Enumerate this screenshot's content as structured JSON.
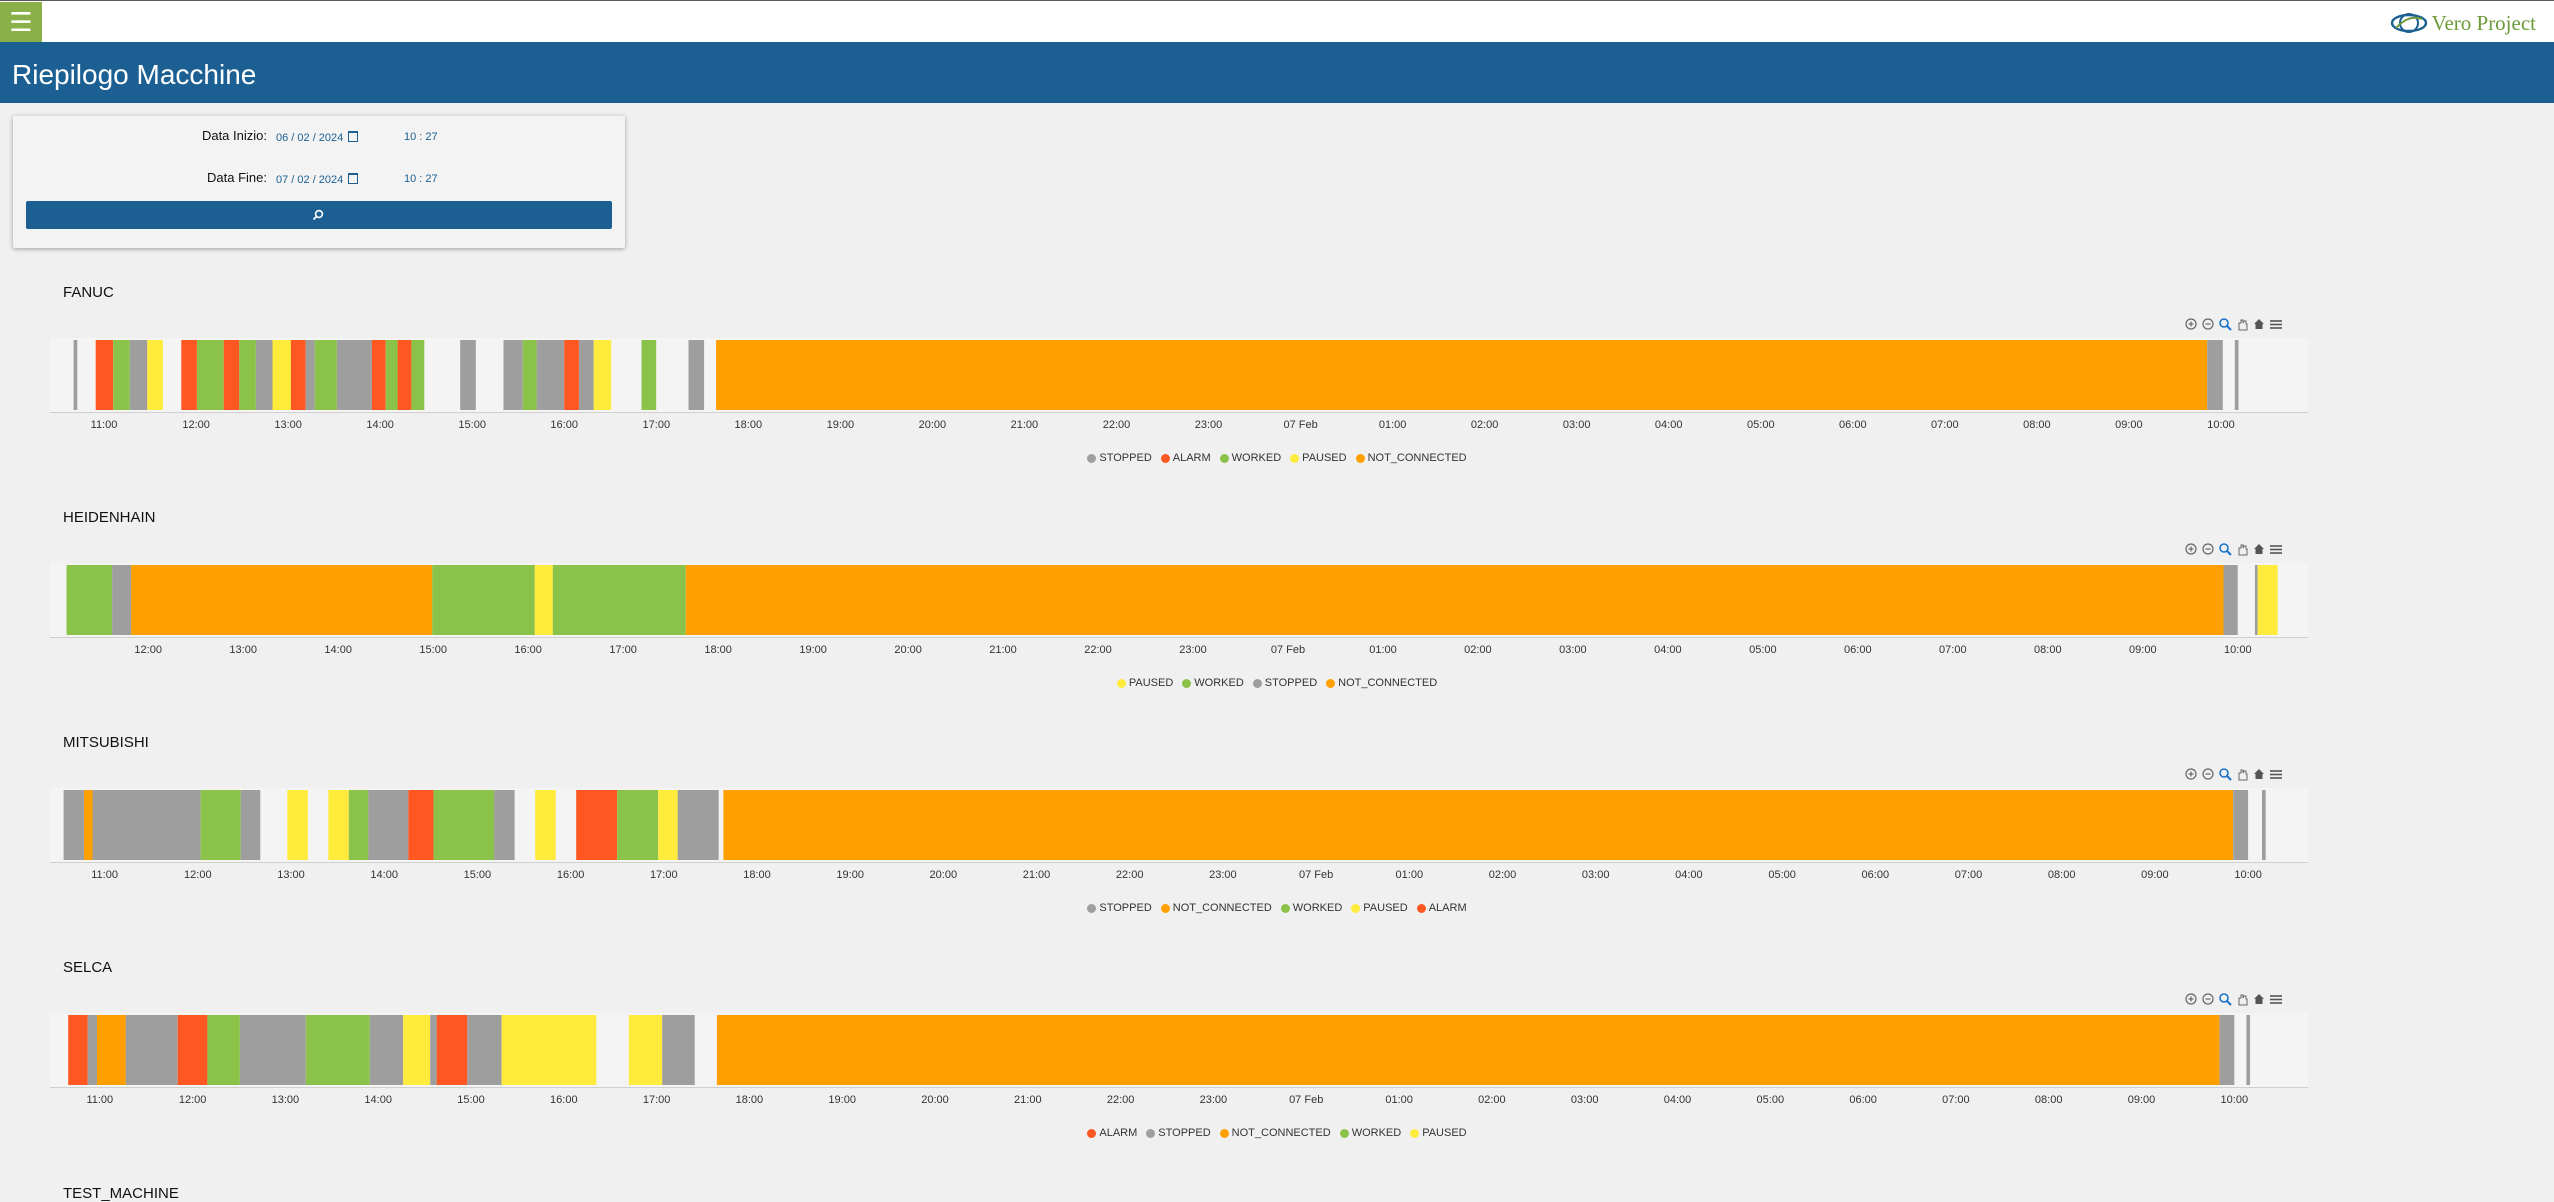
{
  "header": {
    "menu_icon": "hamburger-icon",
    "logo_text": "Vero Project",
    "logo_icon": "vero-swirl-logo-icon"
  },
  "page": {
    "title": "Riepilogo Macchine"
  },
  "filter": {
    "start_label": "Data Inizio:",
    "start_date": "06 / 02 / 2024",
    "start_time": "10 : 27",
    "end_label": "Data Fine:",
    "end_date": "07 / 02 / 2024",
    "end_time": "10 : 27",
    "search_icon": "search-icon"
  },
  "toolbar_icons": [
    "zoom-in-icon",
    "zoom-out-icon",
    "zoom-selection-icon",
    "pan-icon",
    "home-icon",
    "menu-icon"
  ],
  "state_colors": {
    "STOPPED": "#9e9e9e",
    "ALARM": "#ff5722",
    "WORKED": "#8bc34a",
    "PAUSED": "#ffeb3b",
    "NOT_CONNECTED": "#ffa000"
  },
  "machines": [
    {
      "name": "FANUC",
      "legend": [
        "STOPPED",
        "ALARM",
        "WORKED",
        "PAUSED",
        "NOT_CONNECTED"
      ],
      "ticks": [
        "11:00",
        "12:00",
        "13:00",
        "14:00",
        "15:00",
        "16:00",
        "17:00",
        "18:00",
        "19:00",
        "20:00",
        "21:00",
        "22:00",
        "23:00",
        "07 Feb",
        "01:00",
        "02:00",
        "03:00",
        "04:00",
        "05:00",
        "06:00",
        "07:00",
        "08:00",
        "09:00",
        "10:00"
      ],
      "first_tick_hour": 11.0,
      "view_start": 10.5,
      "view_end": 34.75,
      "segments": [
        {
          "s": 10.67,
          "e": 10.71,
          "state": "STOPPED"
        },
        {
          "s": 10.91,
          "e": 11.1,
          "state": "ALARM"
        },
        {
          "s": 11.1,
          "e": 11.28,
          "state": "WORKED"
        },
        {
          "s": 11.28,
          "e": 11.47,
          "state": "STOPPED"
        },
        {
          "s": 11.47,
          "e": 11.64,
          "state": "PAUSED"
        },
        {
          "s": 11.84,
          "e": 12.01,
          "state": "ALARM"
        },
        {
          "s": 12.01,
          "e": 12.3,
          "state": "WORKED"
        },
        {
          "s": 12.3,
          "e": 12.47,
          "state": "ALARM"
        },
        {
          "s": 12.47,
          "e": 12.65,
          "state": "WORKED"
        },
        {
          "s": 12.65,
          "e": 12.83,
          "state": "STOPPED"
        },
        {
          "s": 12.83,
          "e": 13.03,
          "state": "PAUSED"
        },
        {
          "s": 13.03,
          "e": 13.19,
          "state": "ALARM"
        },
        {
          "s": 13.19,
          "e": 13.29,
          "state": "STOPPED"
        },
        {
          "s": 13.29,
          "e": 13.53,
          "state": "WORKED"
        },
        {
          "s": 13.53,
          "e": 13.91,
          "state": "STOPPED"
        },
        {
          "s": 13.91,
          "e": 14.06,
          "state": "ALARM"
        },
        {
          "s": 14.06,
          "e": 14.19,
          "state": "WORKED"
        },
        {
          "s": 14.19,
          "e": 14.34,
          "state": "ALARM"
        },
        {
          "s": 14.34,
          "e": 14.48,
          "state": "WORKED"
        },
        {
          "s": 14.87,
          "e": 15.04,
          "state": "STOPPED"
        },
        {
          "s": 15.34,
          "e": 15.55,
          "state": "STOPPED"
        },
        {
          "s": 15.55,
          "e": 15.7,
          "state": "WORKED"
        },
        {
          "s": 15.7,
          "e": 16.0,
          "state": "STOPPED"
        },
        {
          "s": 16.0,
          "e": 16.16,
          "state": "ALARM"
        },
        {
          "s": 16.16,
          "e": 16.32,
          "state": "STOPPED"
        },
        {
          "s": 16.32,
          "e": 16.51,
          "state": "PAUSED"
        },
        {
          "s": 16.84,
          "e": 17.0,
          "state": "WORKED"
        },
        {
          "s": 17.35,
          "e": 17.52,
          "state": "STOPPED"
        },
        {
          "s": 17.65,
          "e": 33.85,
          "state": "NOT_CONNECTED"
        },
        {
          "s": 33.85,
          "e": 34.02,
          "state": "STOPPED"
        },
        {
          "s": 34.15,
          "e": 34.19,
          "state": "STOPPED"
        }
      ]
    },
    {
      "name": "HEIDENHAIN",
      "legend": [
        "PAUSED",
        "WORKED",
        "STOPPED",
        "NOT_CONNECTED"
      ],
      "ticks": [
        "12:00",
        "13:00",
        "14:00",
        "15:00",
        "16:00",
        "17:00",
        "18:00",
        "19:00",
        "20:00",
        "21:00",
        "22:00",
        "23:00",
        "07 Feb",
        "01:00",
        "02:00",
        "03:00",
        "04:00",
        "05:00",
        "06:00",
        "07:00",
        "08:00",
        "09:00",
        "10:00"
      ],
      "first_tick_hour": 12.0,
      "view_start": 11.05,
      "view_end": 34.55,
      "segments": [
        {
          "s": 11.14,
          "e": 11.62,
          "state": "WORKED"
        },
        {
          "s": 11.62,
          "e": 11.82,
          "state": "STOPPED"
        },
        {
          "s": 11.82,
          "e": 14.99,
          "state": "NOT_CONNECTED"
        },
        {
          "s": 14.99,
          "e": 16.07,
          "state": "WORKED"
        },
        {
          "s": 16.07,
          "e": 16.26,
          "state": "PAUSED"
        },
        {
          "s": 16.26,
          "e": 17.66,
          "state": "WORKED"
        },
        {
          "s": 17.66,
          "e": 33.85,
          "state": "NOT_CONNECTED"
        },
        {
          "s": 33.85,
          "e": 34.0,
          "state": "STOPPED"
        },
        {
          "s": 34.18,
          "e": 34.21,
          "state": "STOPPED"
        },
        {
          "s": 34.21,
          "e": 34.42,
          "state": "PAUSED"
        }
      ]
    },
    {
      "name": "MITSUBISHI",
      "legend": [
        "STOPPED",
        "NOT_CONNECTED",
        "WORKED",
        "PAUSED",
        "ALARM"
      ],
      "ticks": [
        "11:00",
        "12:00",
        "13:00",
        "14:00",
        "15:00",
        "16:00",
        "17:00",
        "18:00",
        "19:00",
        "20:00",
        "21:00",
        "22:00",
        "23:00",
        "07 Feb",
        "01:00",
        "02:00",
        "03:00",
        "04:00",
        "05:00",
        "06:00",
        "07:00",
        "08:00",
        "09:00",
        "10:00"
      ],
      "first_tick_hour": 11.0,
      "view_start": 10.5,
      "view_end": 34.45,
      "segments": [
        {
          "s": 10.56,
          "e": 10.78,
          "state": "STOPPED"
        },
        {
          "s": 10.78,
          "e": 10.87,
          "state": "NOT_CONNECTED"
        },
        {
          "s": 10.87,
          "e": 12.03,
          "state": "STOPPED"
        },
        {
          "s": 12.03,
          "e": 12.46,
          "state": "WORKED"
        },
        {
          "s": 12.46,
          "e": 12.67,
          "state": "STOPPED"
        },
        {
          "s": 12.96,
          "e": 13.18,
          "state": "PAUSED"
        },
        {
          "s": 13.4,
          "e": 13.62,
          "state": "PAUSED"
        },
        {
          "s": 13.62,
          "e": 13.83,
          "state": "WORKED"
        },
        {
          "s": 13.83,
          "e": 14.26,
          "state": "STOPPED"
        },
        {
          "s": 14.26,
          "e": 14.53,
          "state": "ALARM"
        },
        {
          "s": 14.53,
          "e": 15.18,
          "state": "WORKED"
        },
        {
          "s": 15.18,
          "e": 15.4,
          "state": "STOPPED"
        },
        {
          "s": 15.62,
          "e": 15.84,
          "state": "PAUSED"
        },
        {
          "s": 16.06,
          "e": 16.5,
          "state": "ALARM"
        },
        {
          "s": 16.5,
          "e": 16.94,
          "state": "WORKED"
        },
        {
          "s": 16.94,
          "e": 17.15,
          "state": "PAUSED"
        },
        {
          "s": 17.15,
          "e": 17.59,
          "state": "STOPPED"
        },
        {
          "s": 17.64,
          "e": 33.84,
          "state": "NOT_CONNECTED"
        },
        {
          "s": 33.84,
          "e": 34.0,
          "state": "STOPPED"
        },
        {
          "s": 34.15,
          "e": 34.19,
          "state": "STOPPED"
        }
      ]
    },
    {
      "name": "SELCA",
      "legend": [
        "ALARM",
        "STOPPED",
        "NOT_CONNECTED",
        "WORKED",
        "PAUSED"
      ],
      "ticks": [
        "11:00",
        "12:00",
        "13:00",
        "14:00",
        "15:00",
        "16:00",
        "17:00",
        "18:00",
        "19:00",
        "20:00",
        "21:00",
        "22:00",
        "23:00",
        "07 Feb",
        "01:00",
        "02:00",
        "03:00",
        "04:00",
        "05:00",
        "06:00",
        "07:00",
        "08:00",
        "09:00",
        "10:00"
      ],
      "first_tick_hour": 11.0,
      "view_start": 10.55,
      "view_end": 34.6,
      "segments": [
        {
          "s": 10.66,
          "e": 10.87,
          "state": "ALARM"
        },
        {
          "s": 10.87,
          "e": 10.97,
          "state": "STOPPED"
        },
        {
          "s": 10.97,
          "e": 11.28,
          "state": "NOT_CONNECTED"
        },
        {
          "s": 11.28,
          "e": 11.84,
          "state": "STOPPED"
        },
        {
          "s": 11.84,
          "e": 12.16,
          "state": "ALARM"
        },
        {
          "s": 12.16,
          "e": 12.51,
          "state": "WORKED"
        },
        {
          "s": 12.51,
          "e": 13.22,
          "state": "STOPPED"
        },
        {
          "s": 13.22,
          "e": 13.91,
          "state": "WORKED"
        },
        {
          "s": 13.91,
          "e": 14.27,
          "state": "STOPPED"
        },
        {
          "s": 14.27,
          "e": 14.56,
          "state": "PAUSED"
        },
        {
          "s": 14.56,
          "e": 14.63,
          "state": "STOPPED"
        },
        {
          "s": 14.63,
          "e": 14.96,
          "state": "ALARM"
        },
        {
          "s": 14.96,
          "e": 15.33,
          "state": "STOPPED"
        },
        {
          "s": 15.33,
          "e": 16.35,
          "state": "PAUSED"
        },
        {
          "s": 16.7,
          "e": 17.06,
          "state": "PAUSED"
        },
        {
          "s": 17.06,
          "e": 17.41,
          "state": "STOPPED"
        },
        {
          "s": 17.65,
          "e": 33.84,
          "state": "NOT_CONNECTED"
        },
        {
          "s": 33.84,
          "e": 34.0,
          "state": "STOPPED"
        },
        {
          "s": 34.13,
          "e": 34.17,
          "state": "STOPPED"
        }
      ]
    },
    {
      "name": "TEST_MACHINE"
    }
  ]
}
